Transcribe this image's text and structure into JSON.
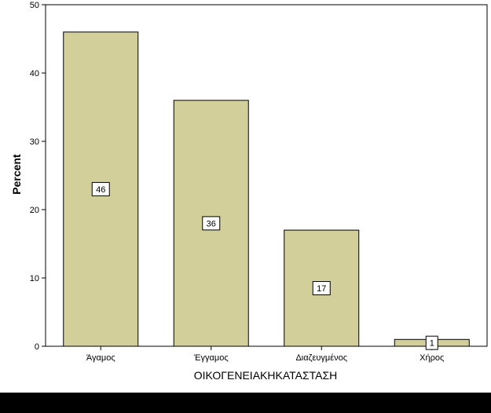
{
  "chart_data": {
    "type": "bar",
    "title": "",
    "xlabel": "ΟΙΚΟΓΕΝΕΙΑΚΗΚΑΤΑΣΤΑΣΗ",
    "ylabel": "Percent",
    "categories": [
      "Άγαμος",
      "Έγγαμος",
      "Διαζευγμένος",
      "Χήρος"
    ],
    "values": [
      46,
      36,
      17,
      1
    ],
    "data_labels": [
      "46",
      "36",
      "17",
      "1"
    ],
    "ylim": [
      0,
      50
    ],
    "yticks": [
      0,
      10,
      20,
      30,
      40,
      50
    ],
    "grid": false,
    "colors": {
      "bar_fill": "#d3cf9b",
      "bar_stroke": "#000000",
      "plot_background": "#ffffff",
      "frame": "#000000"
    }
  }
}
